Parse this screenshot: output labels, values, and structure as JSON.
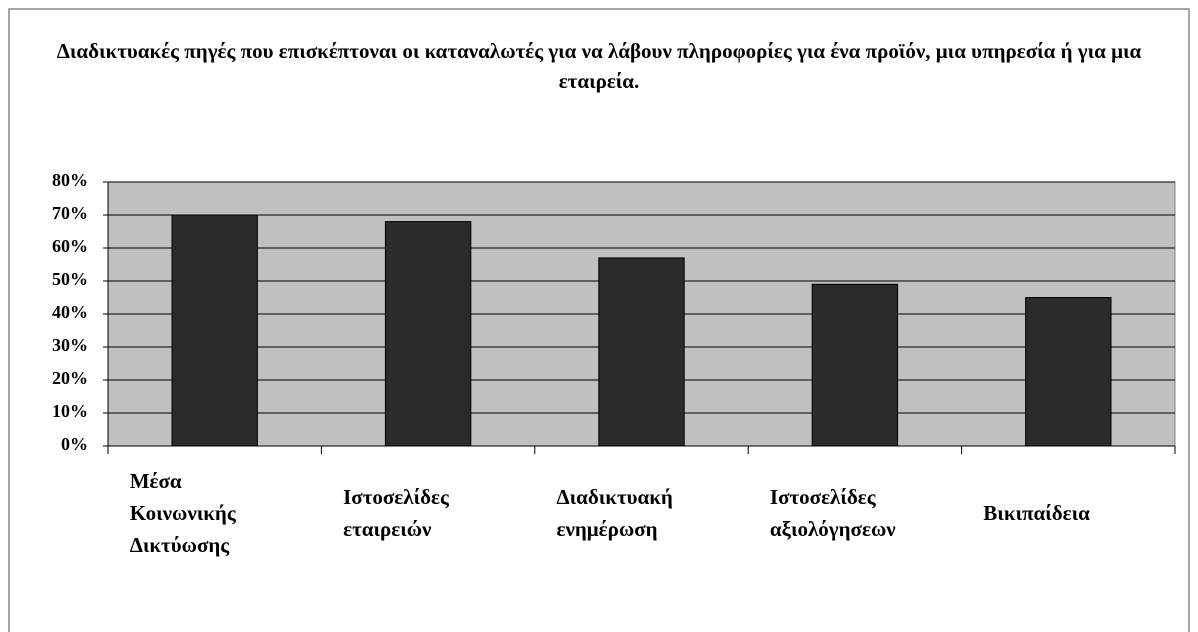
{
  "chart_data": {
    "type": "bar",
    "title": "Διαδικτυακές πηγές που επισκέπτοναι οι καταναλωτές για να λάβουν πληροφορίες για ένα προϊόν, μια υπηρεσία ή για μια εταιρεία.",
    "categories": [
      "Μέσα Κοινωνικής Δικτύωσης",
      "Ιστοσελίδες εταιρειών",
      "Διαδικτυακή ενημέρωση",
      "Ιστοσελίδες αξιολόγησεων",
      "Βικιπαίδεια"
    ],
    "values": [
      70,
      68,
      57,
      49,
      45
    ],
    "color": "#2b2b2b",
    "ylim": [
      0,
      80
    ],
    "yticks": [
      {
        "value": 0,
        "label": "0%"
      },
      {
        "value": 10,
        "label": "10%"
      },
      {
        "value": 20,
        "label": "20%"
      },
      {
        "value": 30,
        "label": "30%"
      },
      {
        "value": 40,
        "label": "40%"
      },
      {
        "value": 50,
        "label": "50%"
      },
      {
        "value": 60,
        "label": "60%"
      },
      {
        "value": 70,
        "label": "70%"
      },
      {
        "value": 80,
        "label": "80%"
      }
    ],
    "grid": true
  }
}
